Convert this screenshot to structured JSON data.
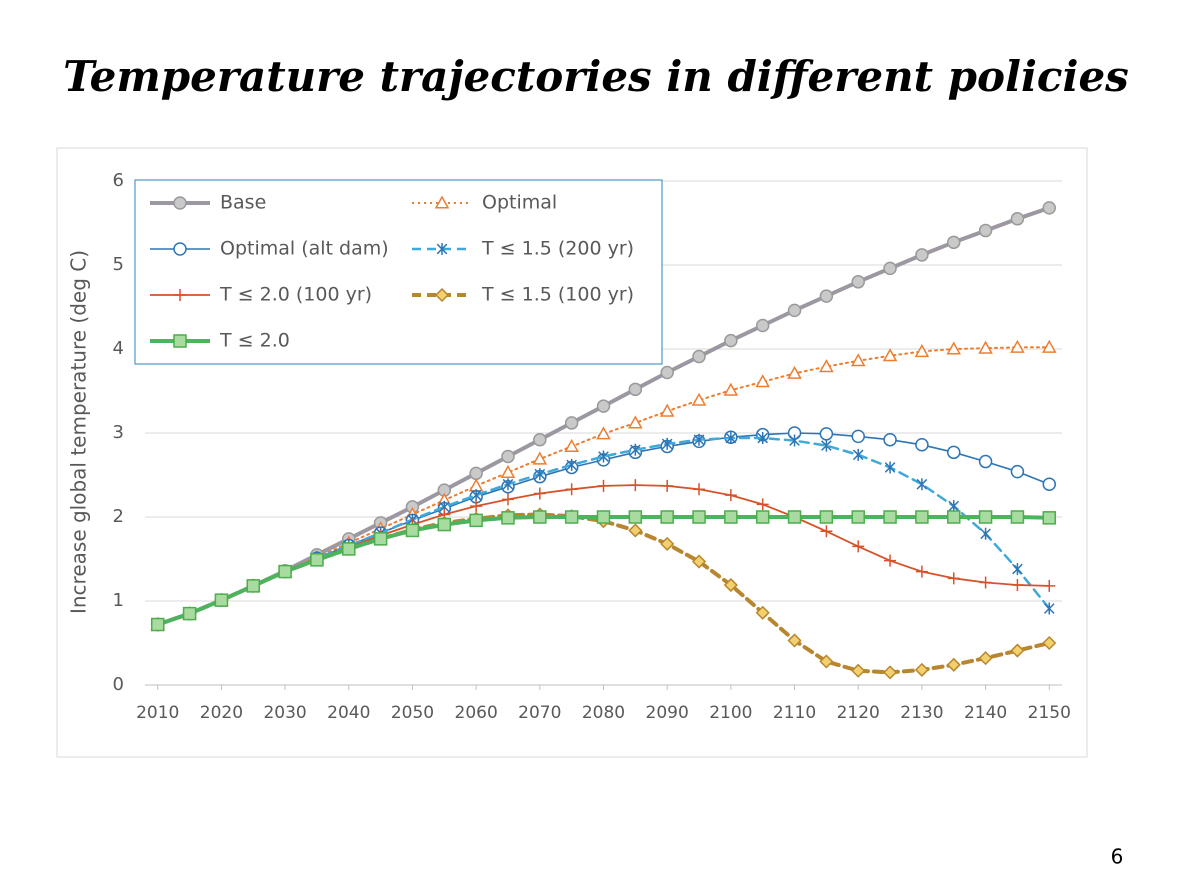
{
  "chart_data": {
    "type": "line",
    "title": "Temperature trajectories in different policies",
    "y_label": "Increase global temperature (deg C)",
    "x": [
      2010,
      2015,
      2020,
      2025,
      2030,
      2035,
      2040,
      2045,
      2050,
      2055,
      2060,
      2065,
      2070,
      2075,
      2080,
      2085,
      2090,
      2095,
      2100,
      2105,
      2110,
      2115,
      2120,
      2125,
      2130,
      2135,
      2140,
      2145,
      2150
    ],
    "xlim": [
      2008,
      2152
    ],
    "xticks": [
      2010,
      2020,
      2030,
      2040,
      2050,
      2060,
      2070,
      2080,
      2090,
      2100,
      2110,
      2120,
      2130,
      2140,
      2150
    ],
    "ylim": [
      0,
      6
    ],
    "yticks": [
      0,
      1,
      2,
      3,
      4,
      5,
      6
    ],
    "grid": true,
    "legend": "upper left",
    "series": [
      {
        "name": "Base",
        "color": "#9d97a1",
        "marker_fill": "#c9c9c9",
        "marker": "circle",
        "dash": "solid",
        "width": 4,
        "values": [
          0.72,
          0.85,
          1.01,
          1.18,
          1.36,
          1.55,
          1.74,
          1.93,
          2.12,
          2.32,
          2.52,
          2.72,
          2.92,
          3.12,
          3.32,
          3.52,
          3.72,
          3.91,
          4.1,
          4.28,
          4.46,
          4.63,
          4.8,
          4.96,
          5.12,
          5.27,
          5.41,
          5.55,
          5.68
        ]
      },
      {
        "name": "Optimal",
        "color": "#ed7d31",
        "marker_fill": "#ffffff",
        "marker": "triangle",
        "dash": "dot",
        "width": 2,
        "values": [
          0.72,
          0.85,
          1.01,
          1.18,
          1.35,
          1.52,
          1.69,
          1.86,
          2.03,
          2.2,
          2.37,
          2.53,
          2.69,
          2.84,
          2.99,
          3.12,
          3.26,
          3.39,
          3.51,
          3.61,
          3.71,
          3.79,
          3.86,
          3.92,
          3.97,
          4.0,
          4.01,
          4.02,
          4.02
        ]
      },
      {
        "name": "Optimal (alt dam)",
        "color": "#2e75b6",
        "marker_fill": "#ffffff",
        "marker": "circle",
        "dash": "solid",
        "width": 1.6,
        "values": [
          0.72,
          0.85,
          1.01,
          1.18,
          1.35,
          1.51,
          1.66,
          1.81,
          1.96,
          2.1,
          2.24,
          2.36,
          2.48,
          2.59,
          2.68,
          2.77,
          2.84,
          2.9,
          2.95,
          2.98,
          3.0,
          2.99,
          2.96,
          2.92,
          2.86,
          2.77,
          2.66,
          2.54,
          2.39
        ]
      },
      {
        "name": "T ≤ 1.5 (200 yr)",
        "color": "#3fa9d9",
        "marker_fill": "#2e75b6",
        "marker": "star",
        "dash": "dash",
        "width": 2.5,
        "values": [
          0.72,
          0.85,
          1.01,
          1.18,
          1.35,
          1.51,
          1.66,
          1.81,
          1.97,
          2.12,
          2.26,
          2.39,
          2.51,
          2.62,
          2.72,
          2.8,
          2.87,
          2.92,
          2.94,
          2.94,
          2.91,
          2.85,
          2.74,
          2.59,
          2.39,
          2.13,
          1.8,
          1.38,
          0.91
        ]
      },
      {
        "name": "T ≤ 2.0 (100 yr)",
        "color": "#d6532a",
        "marker_fill": "#d6532a",
        "marker": "plus",
        "dash": "solid",
        "width": 1.8,
        "values": [
          0.72,
          0.85,
          1.01,
          1.18,
          1.35,
          1.5,
          1.64,
          1.78,
          1.91,
          2.03,
          2.13,
          2.21,
          2.28,
          2.33,
          2.37,
          2.38,
          2.37,
          2.33,
          2.26,
          2.15,
          2.0,
          1.83,
          1.65,
          1.48,
          1.35,
          1.27,
          1.22,
          1.19,
          1.18
        ]
      },
      {
        "name": "T ≤ 1.5 (100 yr)",
        "color": "#b8862f",
        "marker_fill": "#f3d06e",
        "marker": "diamond",
        "dash": "dash",
        "width": 4,
        "values": [
          0.72,
          0.85,
          1.01,
          1.18,
          1.35,
          1.49,
          1.62,
          1.74,
          1.85,
          1.93,
          1.98,
          2.02,
          2.03,
          2.01,
          1.95,
          1.84,
          1.68,
          1.47,
          1.19,
          0.86,
          0.53,
          0.28,
          0.17,
          0.15,
          0.18,
          0.24,
          0.32,
          0.41,
          0.5
        ]
      },
      {
        "name": "T ≤ 2.0",
        "color": "#4db35e",
        "marker_fill": "#a8dba0",
        "marker": "square",
        "dash": "solid",
        "width": 4,
        "values": [
          0.72,
          0.85,
          1.01,
          1.18,
          1.35,
          1.49,
          1.62,
          1.74,
          1.84,
          1.91,
          1.96,
          1.99,
          2.0,
          2.0,
          2.0,
          2.0,
          2.0,
          2.0,
          2.0,
          2.0,
          2.0,
          2.0,
          2.0,
          2.0,
          2.0,
          2.0,
          2.0,
          2.0,
          1.99
        ]
      }
    ]
  },
  "page_number": "6"
}
